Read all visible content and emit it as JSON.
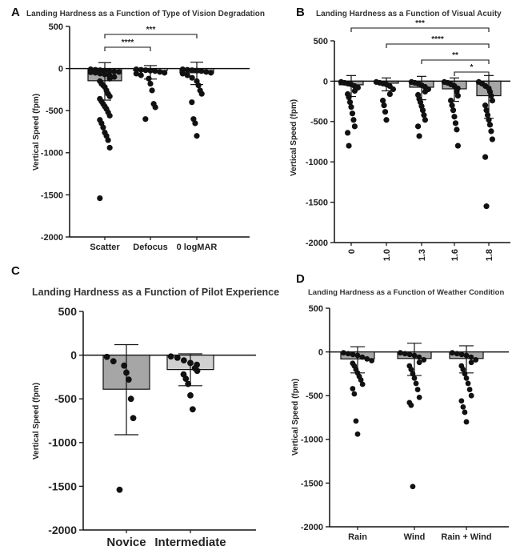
{
  "chart_data": [
    {
      "panel": "A",
      "type": "bar",
      "title": "Landing Hardness as a Function of Type of Vision Degradation",
      "xlabel": "",
      "ylabel": "Vertical Speed (fpm)",
      "ylim": [
        -2000,
        500
      ],
      "yticks": [
        "500",
        "0",
        "-500",
        "-1000",
        "-1500",
        "-2000"
      ],
      "categories": [
        "Scatter",
        "Defocus",
        "0 logMAR"
      ],
      "values": [
        -145,
        -25,
        -50
      ],
      "error_low": [
        -375,
        -125,
        -190
      ],
      "error_high": [
        70,
        35,
        75
      ],
      "bar_colors": [
        "#a6a6a6",
        "#d0d0d0",
        "#a6a6a6"
      ],
      "points": [
        [
          -10,
          -15,
          -20,
          -25,
          -30,
          -35,
          -40,
          -45,
          -50,
          -60,
          -70,
          -80,
          -100,
          -120,
          -150,
          -180,
          -200,
          -220,
          -260,
          -300,
          -330,
          -360,
          -390,
          -420,
          -450,
          -480,
          -520,
          -560,
          -610,
          -650,
          -700,
          -760,
          -800,
          -850,
          -940,
          -1540
        ],
        [
          -10,
          -15,
          -20,
          -25,
          -30,
          -40,
          -50,
          -60,
          -80,
          -120,
          -180,
          -260,
          -420,
          -460,
          -600
        ],
        [
          -10,
          -15,
          -20,
          -25,
          -30,
          -40,
          -50,
          -60,
          -80,
          -110,
          -150,
          -200,
          -260,
          -300,
          -400,
          -600,
          -650,
          -800
        ]
      ],
      "significance": [
        {
          "from": 0,
          "to": 1,
          "label": "****"
        },
        {
          "from": 0,
          "to": 2,
          "label": "***"
        }
      ]
    },
    {
      "panel": "B",
      "type": "bar",
      "title": "Landing Hardness as a Function of Visual Acuity",
      "xlabel": "",
      "ylabel": "Vertical Speed (fpm)",
      "ylim": [
        -2000,
        500
      ],
      "yticks": [
        "500",
        "0",
        "-500",
        "-1000",
        "-1500",
        "-2000"
      ],
      "categories": [
        "0",
        "1.0",
        "1.3",
        "1.6",
        "1.8"
      ],
      "values": [
        -45,
        -25,
        -75,
        -95,
        -180
      ],
      "error_low": [
        -190,
        -120,
        -230,
        -250,
        -460
      ],
      "error_high": [
        70,
        40,
        60,
        40,
        70
      ],
      "bar_colors": [
        "#a6a6a6",
        "#a6a6a6",
        "#a6a6a6",
        "#a6a6a6",
        "#a6a6a6"
      ],
      "points": [
        [
          -10,
          -20,
          -30,
          -40,
          -60,
          -80,
          -120,
          -160,
          -200,
          -260,
          -320,
          -400,
          -480,
          -560,
          -640,
          -800
        ],
        [
          -10,
          -20,
          -30,
          -40,
          -60,
          -100,
          -160,
          -240,
          -300,
          -380,
          -480
        ],
        [
          -10,
          -20,
          -30,
          -50,
          -70,
          -100,
          -130,
          -170,
          -220,
          -260,
          -310,
          -360,
          -420,
          -480,
          -560,
          -680
        ],
        [
          -10,
          -20,
          -40,
          -60,
          -90,
          -130,
          -180,
          -240,
          -300,
          -360,
          -440,
          -520,
          -600,
          -800
        ],
        [
          -10,
          -30,
          -60,
          -90,
          -130,
          -180,
          -240,
          -300,
          -360,
          -420,
          -480,
          -540,
          -620,
          -720,
          -940,
          -1550
        ]
      ],
      "significance": [
        {
          "from": 0,
          "to": 4,
          "label": "***"
        },
        {
          "from": 1,
          "to": 4,
          "label": "****"
        },
        {
          "from": 2,
          "to": 4,
          "label": "**"
        },
        {
          "from": 3,
          "to": 4,
          "label": "*"
        }
      ]
    },
    {
      "panel": "C",
      "type": "bar",
      "title": "Landing Hardness as a Function of Pilot Experience",
      "xlabel": "",
      "ylabel": "Vertical Speed (fpm)",
      "ylim": [
        -2000,
        500
      ],
      "yticks": [
        "500",
        "0",
        "-500",
        "-1000",
        "-1500",
        "-2000"
      ],
      "categories": [
        "Novice",
        "Intermediate"
      ],
      "values": [
        -390,
        -165
      ],
      "error_low": [
        -910,
        -350
      ],
      "error_high": [
        120,
        15
      ],
      "bar_colors": [
        "#a6a6a6",
        "#d0d0d0"
      ],
      "points": [
        [
          -20,
          -70,
          -120,
          -200,
          -280,
          -500,
          -720,
          -1540
        ],
        [
          -15,
          -30,
          -60,
          -90,
          -110,
          -150,
          -180,
          -220,
          -270,
          -330,
          -460,
          -620
        ]
      ],
      "significance": []
    },
    {
      "panel": "D",
      "type": "bar",
      "title": "Landing Hardness as a Function of Weather Condition",
      "xlabel": "",
      "ylabel": "Vertical Speed (fpm)",
      "ylim": [
        -2000,
        500
      ],
      "yticks": [
        "500",
        "0",
        "-500",
        "-1000",
        "-1500",
        "-2000"
      ],
      "categories": [
        "Rain",
        "Wind",
        "Rain + Wind"
      ],
      "values": [
        -80,
        -75,
        -75
      ],
      "error_low": [
        -240,
        -270,
        -240
      ],
      "error_high": [
        60,
        100,
        70
      ],
      "bar_colors": [
        "#a6a6a6",
        "#a6a6a6",
        "#a6a6a6"
      ],
      "points": [
        [
          -10,
          -20,
          -30,
          -40,
          -60,
          -80,
          -100,
          -130,
          -160,
          -200,
          -240,
          -280,
          -320,
          -370,
          -420,
          -480,
          -790,
          -940
        ],
        [
          -10,
          -20,
          -30,
          -40,
          -60,
          -90,
          -120,
          -160,
          -200,
          -250,
          -300,
          -360,
          -430,
          -520,
          -580,
          -610,
          -1540
        ],
        [
          -10,
          -20,
          -30,
          -40,
          -60,
          -90,
          -120,
          -160,
          -200,
          -250,
          -300,
          -360,
          -430,
          -500,
          -560,
          -630,
          -690,
          -800
        ]
      ],
      "significance": []
    }
  ]
}
